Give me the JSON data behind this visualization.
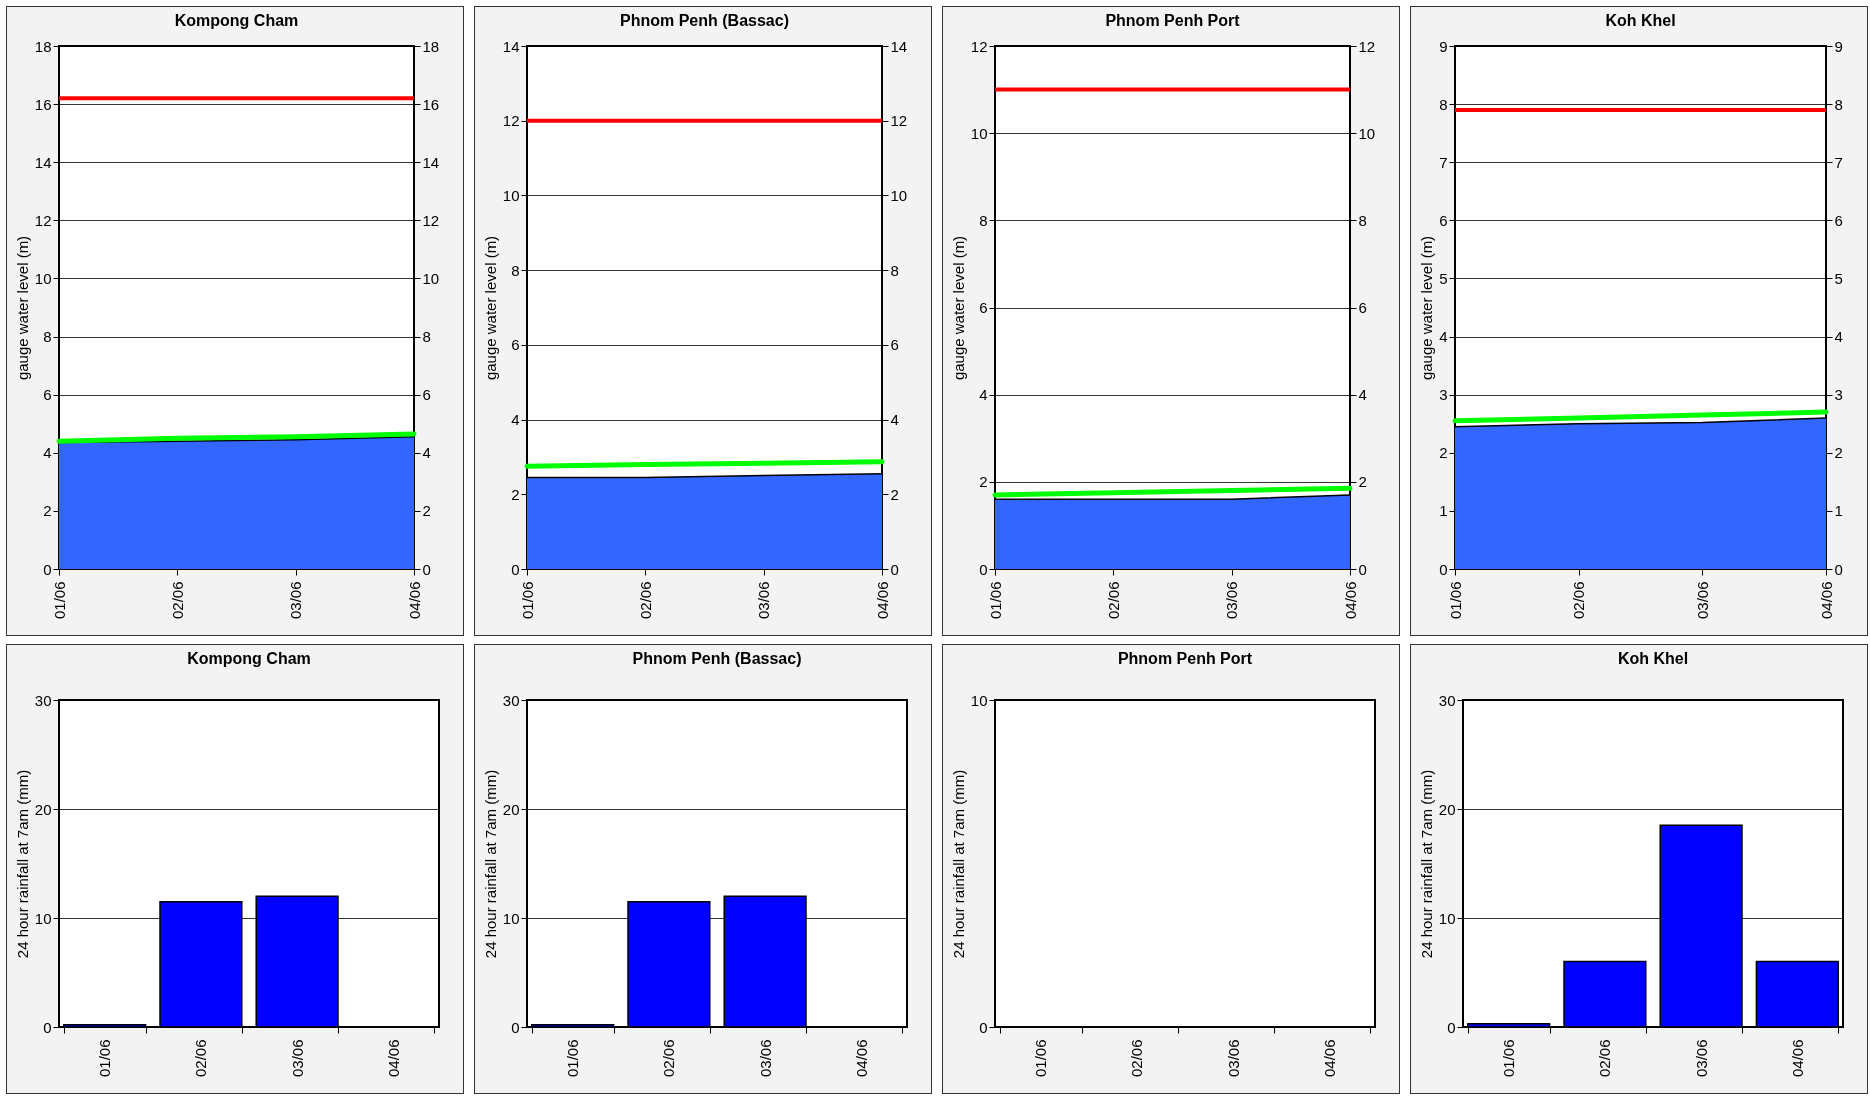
{
  "chart_data": [
    {
      "type": "area",
      "title": "Kompong Cham",
      "ylabel": "gauge water level (m)",
      "categories": [
        "01/06",
        "02/06",
        "03/06",
        "04/06"
      ],
      "ylim": [
        0,
        18
      ],
      "yticks": [
        0,
        2,
        4,
        6,
        8,
        10,
        12,
        14,
        16,
        18
      ],
      "y2lim": [
        0,
        18
      ],
      "y2ticks": [
        0,
        2,
        4,
        6,
        8,
        10,
        12,
        14,
        16,
        18
      ],
      "grid": "y",
      "series": [
        {
          "color": "#3366ff",
          "values": [
            4.35,
            4.4,
            4.45,
            4.55
          ]
        },
        {
          "type": "line",
          "color": "#00ff00",
          "values": [
            4.4,
            4.5,
            4.55,
            4.65
          ]
        }
      ],
      "ref_lines": [
        {
          "axis": "y",
          "value": 16.2,
          "color": "#ff0000"
        }
      ]
    },
    {
      "type": "area",
      "title": "Phnom Penh (Bassac)",
      "ylabel": "gauge water level (m)",
      "categories": [
        "01/06",
        "02/06",
        "03/06",
        "04/06"
      ],
      "ylim": [
        0,
        14
      ],
      "yticks": [
        0,
        2,
        4,
        6,
        8,
        10,
        12,
        14
      ],
      "y2lim": [
        0,
        14
      ],
      "y2ticks": [
        0,
        2,
        4,
        6,
        8,
        10,
        12,
        14
      ],
      "grid": "y",
      "series": [
        {
          "color": "#3366ff",
          "values": [
            2.45,
            2.45,
            2.5,
            2.55
          ]
        },
        {
          "type": "line",
          "color": "#00ff00",
          "values": [
            2.75,
            2.8,
            2.83,
            2.87
          ]
        }
      ],
      "ref_lines": [
        {
          "axis": "y",
          "value": 12,
          "color": "#ff0000"
        }
      ]
    },
    {
      "type": "area",
      "title": "Phnom Penh Port",
      "ylabel": "gauge water level (m)",
      "categories": [
        "01/06",
        "02/06",
        "03/06",
        "04/06"
      ],
      "ylim": [
        0,
        12
      ],
      "yticks": [
        0,
        2,
        4,
        6,
        8,
        10,
        12
      ],
      "y2lim": [
        0,
        12
      ],
      "y2ticks": [
        0,
        2,
        4,
        6,
        8,
        10,
        12
      ],
      "grid": "y",
      "series": [
        {
          "color": "#3366ff",
          "values": [
            1.6,
            1.6,
            1.6,
            1.7
          ]
        },
        {
          "type": "line",
          "color": "#00ff00",
          "values": [
            1.7,
            1.75,
            1.8,
            1.85
          ]
        }
      ],
      "ref_lines": [
        {
          "axis": "y",
          "value": 11,
          "color": "#ff0000"
        }
      ]
    },
    {
      "type": "area",
      "title": "Koh Khel",
      "ylabel": "gauge water level (m)",
      "categories": [
        "01/06",
        "02/06",
        "03/06",
        "04/06"
      ],
      "ylim": [
        0,
        9
      ],
      "yticks": [
        0,
        1,
        2,
        3,
        4,
        5,
        6,
        7,
        8,
        9
      ],
      "y2lim": [
        0,
        9
      ],
      "y2ticks": [
        0,
        1,
        2,
        3,
        4,
        5,
        6,
        7,
        8,
        9
      ],
      "grid": "y",
      "series": [
        {
          "color": "#3366ff",
          "values": [
            2.45,
            2.5,
            2.52,
            2.6
          ]
        },
        {
          "type": "line",
          "color": "#00ff00",
          "values": [
            2.55,
            2.6,
            2.65,
            2.7
          ]
        }
      ],
      "ref_lines": [
        {
          "axis": "y",
          "value": 7.9,
          "color": "#ff0000"
        }
      ]
    },
    {
      "type": "bar",
      "title": "Kompong Cham",
      "ylabel": "24 hour rainfall at 7am (mm)",
      "categories": [
        "01/06",
        "02/06",
        "03/06",
        "04/06"
      ],
      "ylim": [
        0,
        30
      ],
      "yticks": [
        0,
        10,
        20,
        30
      ],
      "grid": "y",
      "series": [
        {
          "color": "#0000ff",
          "values": [
            0.2,
            11.5,
            12,
            0
          ]
        }
      ]
    },
    {
      "type": "bar",
      "title": "Phnom Penh (Bassac)",
      "ylabel": "24 hour rainfall at 7am (mm)",
      "categories": [
        "01/06",
        "02/06",
        "03/06",
        "04/06"
      ],
      "ylim": [
        0,
        30
      ],
      "yticks": [
        0,
        10,
        20,
        30
      ],
      "grid": "y",
      "series": [
        {
          "color": "#0000ff",
          "values": [
            0.2,
            11.5,
            12,
            0
          ]
        }
      ]
    },
    {
      "type": "bar",
      "title": "Phnom Penh Port",
      "ylabel": "24 hour rainfall at 7am (mm)",
      "categories": [
        "01/06",
        "02/06",
        "03/06",
        "04/06"
      ],
      "ylim": [
        0,
        10
      ],
      "yticks": [
        0,
        10
      ],
      "grid": "y",
      "series": [
        {
          "color": "#0000ff",
          "values": [
            0,
            0,
            0,
            0
          ]
        }
      ]
    },
    {
      "type": "bar",
      "title": "Koh Khel",
      "ylabel": "24 hour rainfall at 7am (mm)",
      "categories": [
        "01/06",
        "02/06",
        "03/06",
        "04/06"
      ],
      "ylim": [
        0,
        30
      ],
      "yticks": [
        0,
        10,
        20,
        30
      ],
      "grid": "y",
      "series": [
        {
          "color": "#0000ff",
          "values": [
            0.3,
            6,
            18.5,
            6
          ]
        }
      ]
    }
  ]
}
